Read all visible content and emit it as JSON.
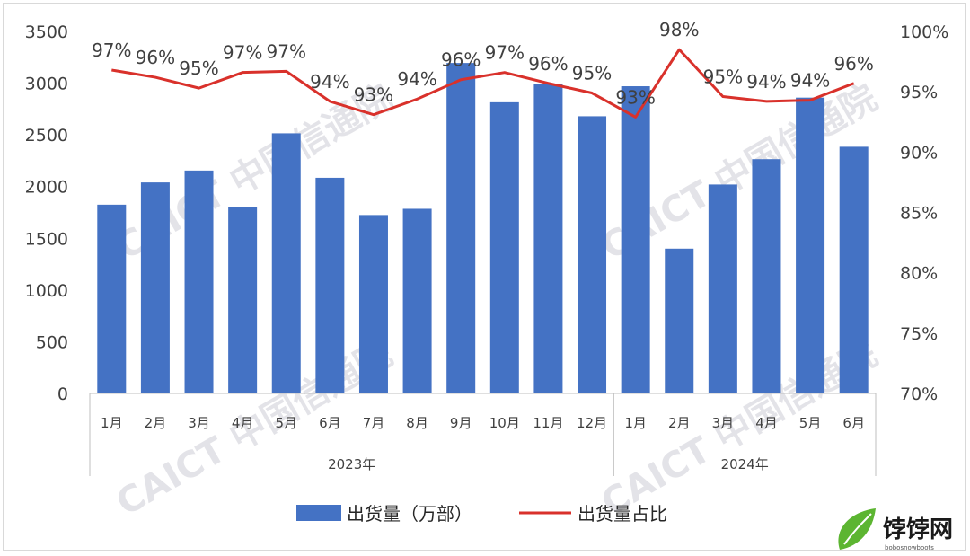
{
  "chart_data": {
    "type": "bar",
    "categories": [
      "1月",
      "2月",
      "3月",
      "4月",
      "5月",
      "6月",
      "7月",
      "8月",
      "9月",
      "10月",
      "11月",
      "12月",
      "1月",
      "2月",
      "3月",
      "4月",
      "5月",
      "6月"
    ],
    "groups": [
      {
        "label": "2023年",
        "start": 0,
        "end": 11
      },
      {
        "label": "2024年",
        "start": 12,
        "end": 17
      }
    ],
    "series": [
      {
        "name": "出货量（万部）",
        "type": "bar",
        "color": "#4472c4",
        "axis": "left",
        "values": [
          1825,
          2040,
          2155,
          1805,
          2515,
          2085,
          1725,
          1785,
          3195,
          2815,
          2995,
          2680,
          2970,
          1400,
          2020,
          2265,
          2860,
          2385
        ]
      },
      {
        "name": "出货量占比",
        "type": "line",
        "color": "#d9312b",
        "axis": "right",
        "values": [
          96.8,
          96.2,
          95.3,
          96.6,
          96.7,
          94.2,
          93.1,
          94.4,
          96.0,
          96.6,
          95.7,
          94.9,
          92.9,
          98.5,
          94.6,
          94.2,
          94.3,
          95.7
        ],
        "labels": [
          "97%",
          "96%",
          "95%",
          "97%",
          "97%",
          "94%",
          "93%",
          "94%",
          "96%",
          "97%",
          "96%",
          "95%",
          "93%",
          "98%",
          "95%",
          "94%",
          "94%",
          "96%"
        ]
      }
    ],
    "ylim_left": [
      0,
      3500
    ],
    "yticks_left": [
      "0",
      "500",
      "1000",
      "1500",
      "2000",
      "2500",
      "3000",
      "3500"
    ],
    "ylim_right": [
      70,
      100
    ],
    "yticks_right": [
      "70%",
      "75%",
      "80%",
      "85%",
      "90%",
      "95%",
      "100%"
    ],
    "legend_position": "bottom",
    "grid": false
  },
  "watermark": "CAICT 中国信通院",
  "logo": {
    "name": "饽饽网",
    "sub": "bobosnowboots"
  }
}
